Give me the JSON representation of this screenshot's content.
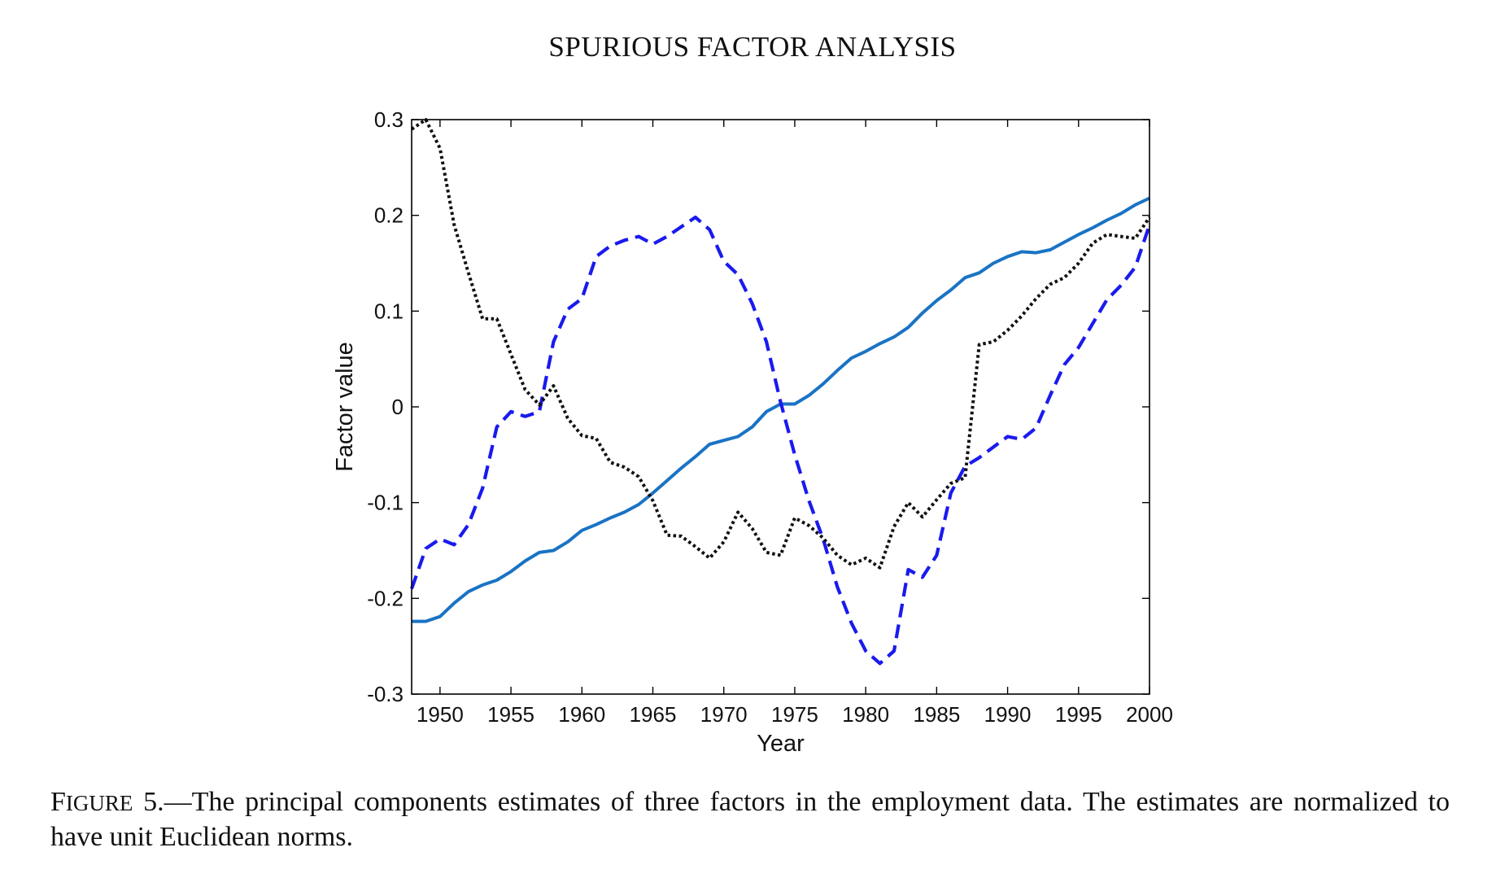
{
  "header": {
    "title": "SPURIOUS FACTOR ANALYSIS"
  },
  "caption": {
    "figure_label_initial": "F",
    "figure_label_rest": "IGURE",
    "figure_number": " 5.",
    "text": "—The principal components estimates of three factors in the employment data. The estimates are normalized to have unit Euclidean norms."
  },
  "colors": {
    "solid": "#1a73c4",
    "dashed": "#1a1aee",
    "dotted": "#111111",
    "axes": "#000000"
  },
  "chart_data": {
    "type": "line",
    "title": "",
    "xlabel": "Year",
    "ylabel": "Factor value",
    "xlim": [
      1948,
      2000
    ],
    "ylim": [
      -0.3,
      0.3
    ],
    "xticks": [
      1950,
      1955,
      1960,
      1965,
      1970,
      1975,
      1980,
      1985,
      1990,
      1995,
      2000
    ],
    "yticks": [
      -0.3,
      -0.2,
      -0.1,
      0,
      0.1,
      0.2,
      0.3
    ],
    "xtick_labels": [
      "1950",
      "1955",
      "1960",
      "1965",
      "1970",
      "1975",
      "1980",
      "1985",
      "1990",
      "1995",
      "2000"
    ],
    "ytick_labels": [
      "-0.3",
      "-0.2",
      "-0.1",
      "0",
      "0.1",
      "0.2",
      "0.3"
    ],
    "grid": false,
    "x": [
      1948,
      1949,
      1950,
      1951,
      1952,
      1953,
      1954,
      1955,
      1956,
      1957,
      1958,
      1959,
      1960,
      1961,
      1962,
      1963,
      1964,
      1965,
      1966,
      1967,
      1968,
      1969,
      1970,
      1971,
      1972,
      1973,
      1974,
      1975,
      1976,
      1977,
      1978,
      1979,
      1980,
      1981,
      1982,
      1983,
      1984,
      1985,
      1986,
      1987,
      1988,
      1989,
      1990,
      1991,
      1992,
      1993,
      1994,
      1995,
      1996,
      1997,
      1998,
      1999,
      2000
    ],
    "series": [
      {
        "style": "solid",
        "values": [
          -0.224,
          -0.224,
          -0.219,
          -0.205,
          -0.193,
          -0.186,
          -0.181,
          -0.172,
          -0.161,
          -0.152,
          -0.15,
          -0.141,
          -0.129,
          -0.123,
          -0.116,
          -0.11,
          -0.102,
          -0.09,
          -0.077,
          -0.064,
          -0.052,
          -0.039,
          -0.035,
          -0.031,
          -0.021,
          -0.005,
          0.003,
          0.003,
          0.012,
          0.024,
          0.038,
          0.051,
          0.058,
          0.066,
          0.073,
          0.083,
          0.098,
          0.111,
          0.122,
          0.135,
          0.14,
          0.15,
          0.157,
          0.162,
          0.161,
          0.164,
          0.172,
          0.18,
          0.187,
          0.195,
          0.202,
          0.211,
          0.218
        ]
      },
      {
        "style": "dashed",
        "values": [
          -0.19,
          -0.148,
          -0.138,
          -0.144,
          -0.123,
          -0.085,
          -0.021,
          -0.005,
          -0.01,
          -0.005,
          0.068,
          0.102,
          0.113,
          0.157,
          0.168,
          0.174,
          0.178,
          0.17,
          0.178,
          0.188,
          0.198,
          0.185,
          0.152,
          0.138,
          0.108,
          0.068,
          0.005,
          -0.05,
          -0.098,
          -0.138,
          -0.188,
          -0.226,
          -0.255,
          -0.268,
          -0.255,
          -0.17,
          -0.178,
          -0.155,
          -0.09,
          -0.062,
          -0.053,
          -0.042,
          -0.031,
          -0.034,
          -0.022,
          0.012,
          0.044,
          0.062,
          0.087,
          0.112,
          0.127,
          0.146,
          0.19
        ]
      },
      {
        "style": "dotted",
        "values": [
          0.29,
          0.3,
          0.27,
          0.19,
          0.14,
          0.092,
          0.092,
          0.055,
          0.018,
          0.002,
          0.022,
          -0.012,
          -0.03,
          -0.033,
          -0.058,
          -0.063,
          -0.073,
          -0.098,
          -0.134,
          -0.135,
          -0.146,
          -0.158,
          -0.141,
          -0.11,
          -0.127,
          -0.152,
          -0.155,
          -0.116,
          -0.124,
          -0.137,
          -0.155,
          -0.165,
          -0.158,
          -0.168,
          -0.125,
          -0.1,
          -0.115,
          -0.097,
          -0.08,
          -0.074,
          0.065,
          0.068,
          0.08,
          0.095,
          0.113,
          0.128,
          0.135,
          0.15,
          0.171,
          0.18,
          0.178,
          0.176,
          0.198
        ]
      }
    ]
  }
}
